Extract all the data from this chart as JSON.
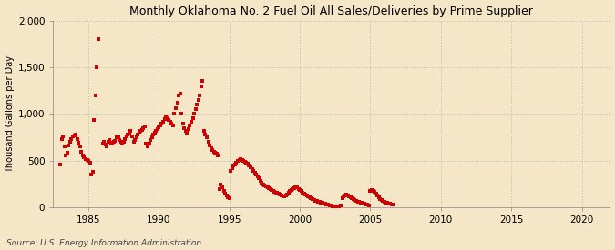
{
  "title": "Monthly Oklahoma No. 2 Fuel Oil All Sales/Deliveries by Prime Supplier",
  "ylabel": "Thousand Gallons per Day",
  "source": "Source: U.S. Energy Information Administration",
  "background_color": "#f5e6c8",
  "marker_color": "#cc0000",
  "xlim": [
    1982.5,
    2022
  ],
  "ylim": [
    0,
    2000
  ],
  "yticks": [
    0,
    500,
    1000,
    1500,
    2000
  ],
  "ytick_labels": [
    "0",
    "500",
    "1,000",
    "1,500",
    "2,000"
  ],
  "xticks": [
    1985,
    1990,
    1995,
    2000,
    2005,
    2010,
    2015,
    2020
  ],
  "data": [
    [
      1983.0,
      460
    ],
    [
      1983.1,
      730
    ],
    [
      1983.2,
      760
    ],
    [
      1983.3,
      650
    ],
    [
      1983.4,
      560
    ],
    [
      1983.5,
      590
    ],
    [
      1983.6,
      660
    ],
    [
      1983.7,
      700
    ],
    [
      1983.8,
      730
    ],
    [
      1983.9,
      760
    ],
    [
      1984.0,
      770
    ],
    [
      1984.1,
      780
    ],
    [
      1984.2,
      730
    ],
    [
      1984.3,
      690
    ],
    [
      1984.4,
      650
    ],
    [
      1984.5,
      600
    ],
    [
      1984.6,
      560
    ],
    [
      1984.7,
      540
    ],
    [
      1984.8,
      520
    ],
    [
      1984.9,
      510
    ],
    [
      1985.0,
      500
    ],
    [
      1985.1,
      480
    ],
    [
      1985.2,
      350
    ],
    [
      1985.3,
      380
    ],
    [
      1985.4,
      940
    ],
    [
      1985.5,
      1200
    ],
    [
      1985.6,
      1500
    ],
    [
      1985.7,
      1800
    ],
    [
      1986.0,
      680
    ],
    [
      1986.1,
      700
    ],
    [
      1986.2,
      670
    ],
    [
      1986.3,
      650
    ],
    [
      1986.4,
      700
    ],
    [
      1986.5,
      720
    ],
    [
      1986.6,
      690
    ],
    [
      1986.7,
      680
    ],
    [
      1986.8,
      700
    ],
    [
      1986.9,
      710
    ],
    [
      1987.0,
      750
    ],
    [
      1987.1,
      760
    ],
    [
      1987.2,
      720
    ],
    [
      1987.3,
      700
    ],
    [
      1987.4,
      680
    ],
    [
      1987.5,
      700
    ],
    [
      1987.6,
      730
    ],
    [
      1987.7,
      760
    ],
    [
      1987.8,
      780
    ],
    [
      1987.9,
      800
    ],
    [
      1988.0,
      820
    ],
    [
      1988.1,
      760
    ],
    [
      1988.2,
      700
    ],
    [
      1988.3,
      720
    ],
    [
      1988.4,
      750
    ],
    [
      1988.5,
      780
    ],
    [
      1988.6,
      810
    ],
    [
      1988.7,
      820
    ],
    [
      1988.8,
      830
    ],
    [
      1988.9,
      850
    ],
    [
      1989.0,
      870
    ],
    [
      1989.1,
      680
    ],
    [
      1989.2,
      650
    ],
    [
      1989.3,
      680
    ],
    [
      1989.4,
      720
    ],
    [
      1989.5,
      750
    ],
    [
      1989.6,
      780
    ],
    [
      1989.7,
      800
    ],
    [
      1989.8,
      820
    ],
    [
      1989.9,
      840
    ],
    [
      1990.0,
      860
    ],
    [
      1990.1,
      880
    ],
    [
      1990.2,
      900
    ],
    [
      1990.3,
      920
    ],
    [
      1990.4,
      950
    ],
    [
      1990.5,
      980
    ],
    [
      1990.6,
      960
    ],
    [
      1990.7,
      940
    ],
    [
      1990.8,
      920
    ],
    [
      1990.9,
      900
    ],
    [
      1991.0,
      880
    ],
    [
      1991.1,
      1000
    ],
    [
      1991.2,
      1060
    ],
    [
      1991.3,
      1120
    ],
    [
      1991.4,
      1200
    ],
    [
      1991.5,
      1220
    ],
    [
      1991.6,
      1000
    ],
    [
      1991.7,
      900
    ],
    [
      1991.8,
      850
    ],
    [
      1991.9,
      820
    ],
    [
      1992.0,
      800
    ],
    [
      1992.1,
      840
    ],
    [
      1992.2,
      880
    ],
    [
      1992.3,
      920
    ],
    [
      1992.4,
      960
    ],
    [
      1992.5,
      1000
    ],
    [
      1992.6,
      1050
    ],
    [
      1992.7,
      1100
    ],
    [
      1992.8,
      1150
    ],
    [
      1992.9,
      1200
    ],
    [
      1993.0,
      1300
    ],
    [
      1993.1,
      1350
    ],
    [
      1993.2,
      820
    ],
    [
      1993.3,
      780
    ],
    [
      1993.4,
      750
    ],
    [
      1993.5,
      700
    ],
    [
      1993.6,
      660
    ],
    [
      1993.7,
      640
    ],
    [
      1993.8,
      620
    ],
    [
      1993.9,
      600
    ],
    [
      1994.0,
      590
    ],
    [
      1994.1,
      580
    ],
    [
      1994.2,
      560
    ],
    [
      1994.3,
      200
    ],
    [
      1994.4,
      250
    ],
    [
      1994.5,
      220
    ],
    [
      1994.6,
      180
    ],
    [
      1994.7,
      150
    ],
    [
      1994.8,
      130
    ],
    [
      1994.9,
      110
    ],
    [
      1995.0,
      100
    ],
    [
      1995.1,
      390
    ],
    [
      1995.2,
      420
    ],
    [
      1995.3,
      450
    ],
    [
      1995.4,
      460
    ],
    [
      1995.5,
      480
    ],
    [
      1995.6,
      500
    ],
    [
      1995.7,
      510
    ],
    [
      1995.8,
      520
    ],
    [
      1995.9,
      510
    ],
    [
      1996.0,
      500
    ],
    [
      1996.1,
      490
    ],
    [
      1996.2,
      480
    ],
    [
      1996.3,
      470
    ],
    [
      1996.4,
      450
    ],
    [
      1996.5,
      430
    ],
    [
      1996.6,
      410
    ],
    [
      1996.7,
      390
    ],
    [
      1996.8,
      370
    ],
    [
      1996.9,
      350
    ],
    [
      1997.0,
      330
    ],
    [
      1997.1,
      310
    ],
    [
      1997.2,
      290
    ],
    [
      1997.3,
      270
    ],
    [
      1997.4,
      250
    ],
    [
      1997.5,
      240
    ],
    [
      1997.6,
      230
    ],
    [
      1997.7,
      220
    ],
    [
      1997.8,
      210
    ],
    [
      1997.9,
      200
    ],
    [
      1998.0,
      190
    ],
    [
      1998.1,
      180
    ],
    [
      1998.2,
      170
    ],
    [
      1998.3,
      160
    ],
    [
      1998.4,
      155
    ],
    [
      1998.5,
      150
    ],
    [
      1998.6,
      140
    ],
    [
      1998.7,
      130
    ],
    [
      1998.8,
      125
    ],
    [
      1998.9,
      120
    ],
    [
      1999.0,
      130
    ],
    [
      1999.1,
      140
    ],
    [
      1999.2,
      160
    ],
    [
      1999.3,
      175
    ],
    [
      1999.4,
      190
    ],
    [
      1999.5,
      200
    ],
    [
      1999.6,
      210
    ],
    [
      1999.7,
      220
    ],
    [
      1999.8,
      215
    ],
    [
      1999.9,
      200
    ],
    [
      2000.0,
      190
    ],
    [
      2000.1,
      175
    ],
    [
      2000.2,
      160
    ],
    [
      2000.3,
      150
    ],
    [
      2000.4,
      140
    ],
    [
      2000.5,
      130
    ],
    [
      2000.6,
      120
    ],
    [
      2000.7,
      110
    ],
    [
      2000.8,
      100
    ],
    [
      2000.9,
      90
    ],
    [
      2001.0,
      80
    ],
    [
      2001.1,
      75
    ],
    [
      2001.2,
      70
    ],
    [
      2001.3,
      65
    ],
    [
      2001.4,
      60
    ],
    [
      2001.5,
      55
    ],
    [
      2001.6,
      50
    ],
    [
      2001.7,
      45
    ],
    [
      2001.8,
      40
    ],
    [
      2001.9,
      35
    ],
    [
      2002.0,
      30
    ],
    [
      2002.1,
      25
    ],
    [
      2002.2,
      20
    ],
    [
      2002.3,
      15
    ],
    [
      2002.4,
      10
    ],
    [
      2002.5,
      10
    ],
    [
      2002.6,
      10
    ],
    [
      2002.7,
      10
    ],
    [
      2002.8,
      15
    ],
    [
      2002.9,
      20
    ],
    [
      2003.0,
      100
    ],
    [
      2003.1,
      120
    ],
    [
      2003.2,
      130
    ],
    [
      2003.3,
      140
    ],
    [
      2003.4,
      130
    ],
    [
      2003.5,
      120
    ],
    [
      2003.6,
      110
    ],
    [
      2003.7,
      100
    ],
    [
      2003.8,
      90
    ],
    [
      2003.9,
      80
    ],
    [
      2004.0,
      70
    ],
    [
      2004.1,
      65
    ],
    [
      2004.2,
      60
    ],
    [
      2004.3,
      55
    ],
    [
      2004.4,
      50
    ],
    [
      2004.5,
      45
    ],
    [
      2004.6,
      40
    ],
    [
      2004.7,
      35
    ],
    [
      2004.8,
      30
    ],
    [
      2004.9,
      25
    ],
    [
      2005.0,
      180
    ],
    [
      2005.1,
      190
    ],
    [
      2005.2,
      180
    ],
    [
      2005.3,
      170
    ],
    [
      2005.4,
      150
    ],
    [
      2005.5,
      130
    ],
    [
      2005.6,
      110
    ],
    [
      2005.7,
      90
    ],
    [
      2005.8,
      80
    ],
    [
      2005.9,
      70
    ],
    [
      2006.0,
      60
    ],
    [
      2006.1,
      55
    ],
    [
      2006.2,
      50
    ],
    [
      2006.3,
      45
    ],
    [
      2006.4,
      40
    ],
    [
      2006.5,
      35
    ],
    [
      2006.6,
      30
    ]
  ]
}
